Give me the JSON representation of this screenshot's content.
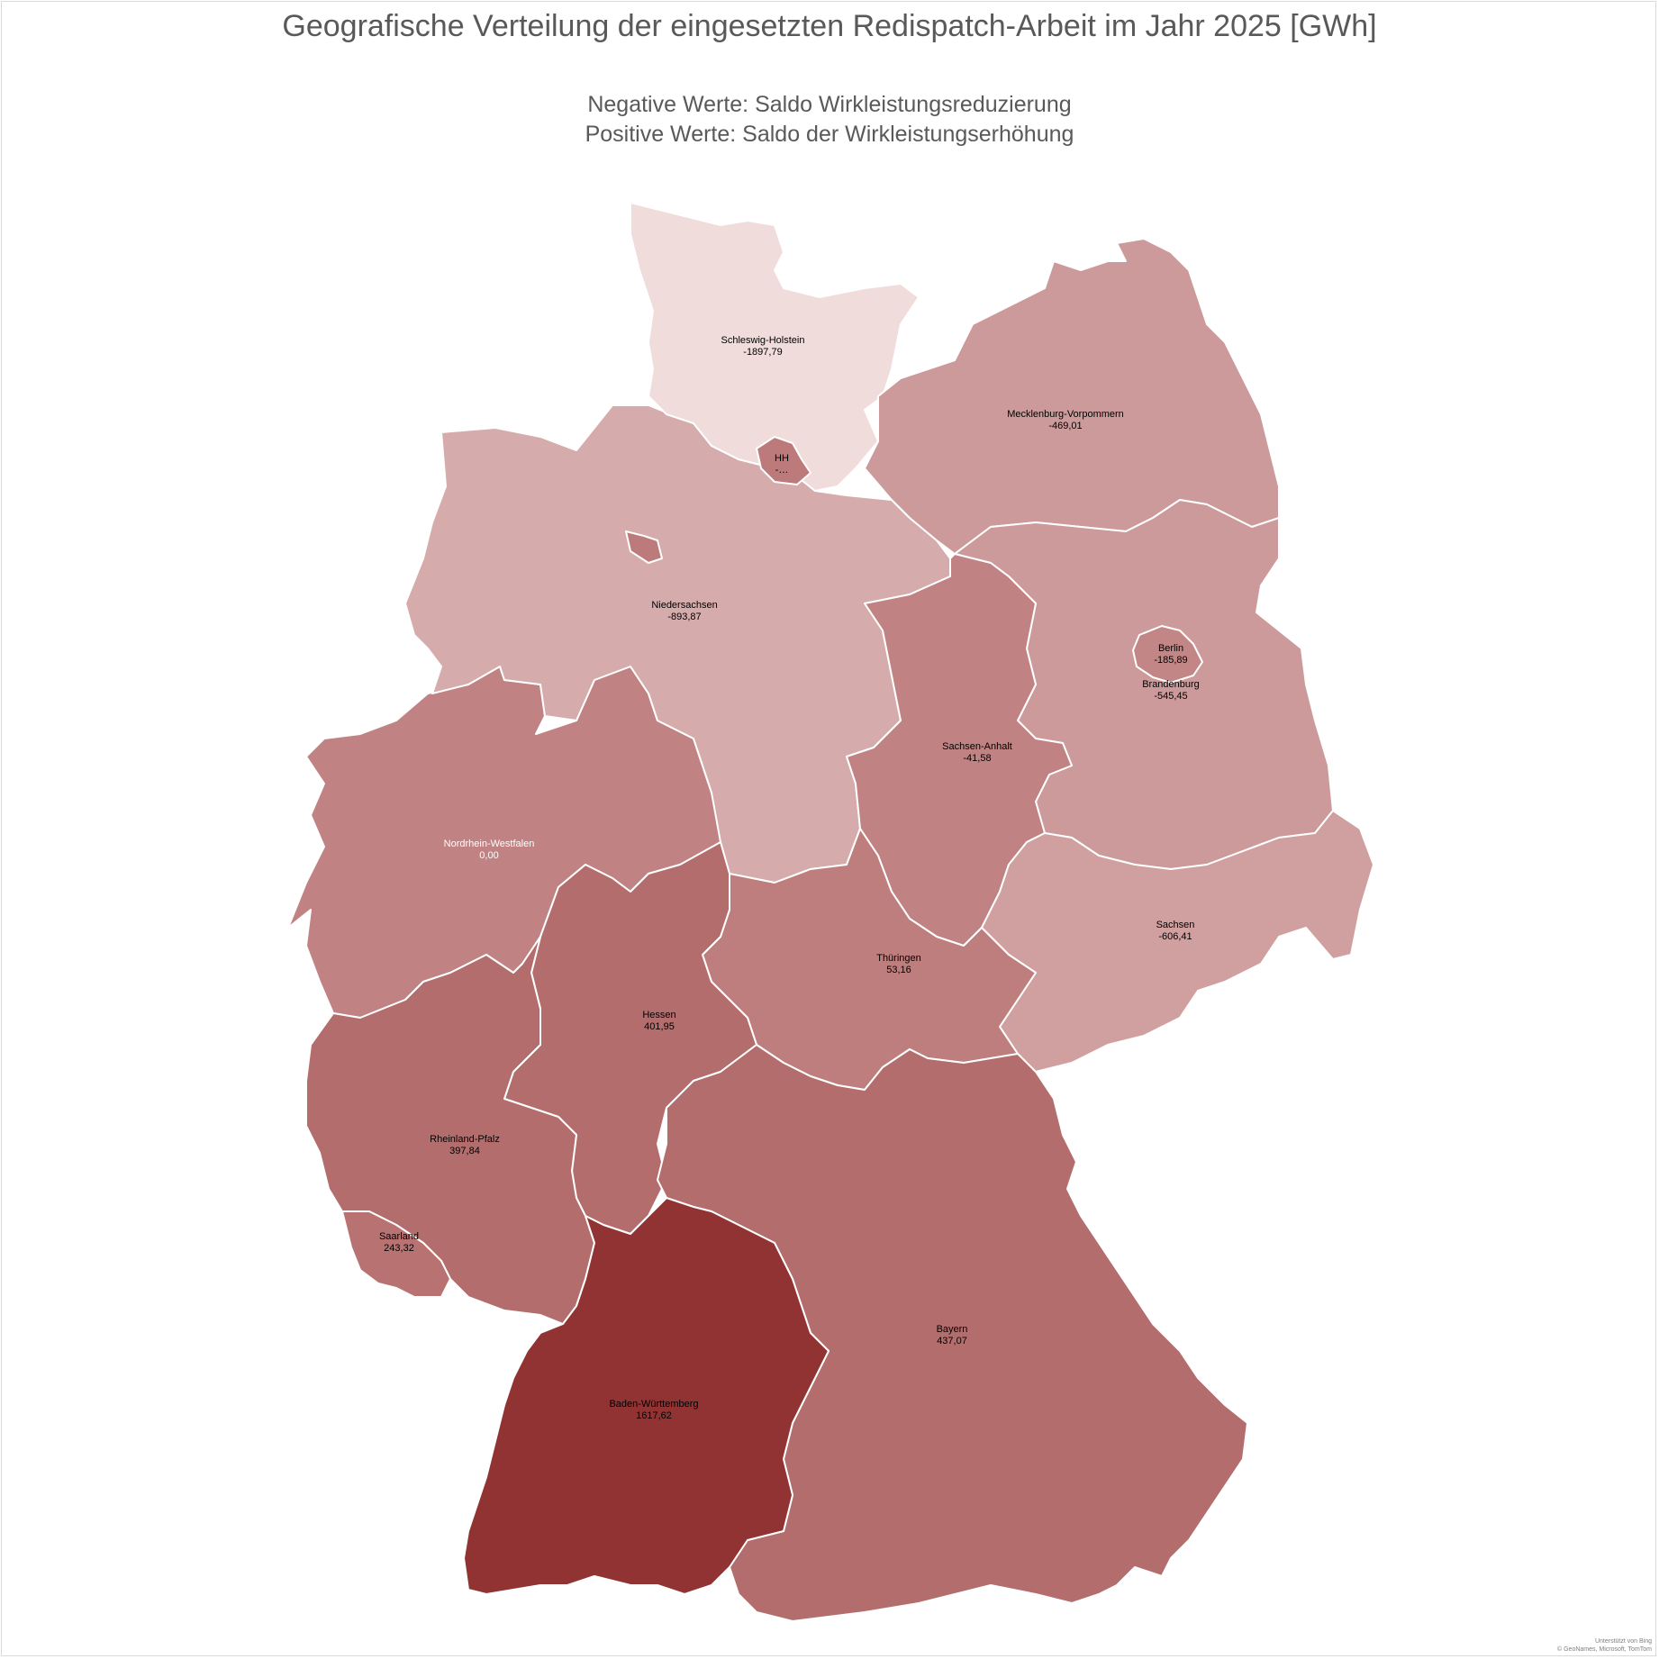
{
  "title": "Geografische Verteilung der eingesetzten Redispatch-Arbeit im Jahr 2025 [GWh]",
  "subtitle_line1": "Negative Werte: Saldo Wirkleistungsreduzierung",
  "subtitle_line2": "Positive Werte: Saldo der Wirkleistungserhöhung",
  "attribution_line1": "Unterstützt von Bing",
  "attribution_line2": "© GeoNames, Microsoft, TomTom",
  "map_data": {
    "type": "choropleth",
    "regions": [
      {
        "id": "sh",
        "name": "Schleswig-Holstein",
        "value": "-1897,79",
        "fill": "#f1dcdc"
      },
      {
        "id": "hh",
        "name": "HH",
        "value": "-…",
        "fill": "#bd7a7a"
      },
      {
        "id": "mv",
        "name": "Mecklenburg-Vorpommern",
        "value": "-469,01",
        "fill": "#cc9a9a"
      },
      {
        "id": "ni",
        "name": "Niedersachsen",
        "value": "-893,87",
        "fill": "#d5abab"
      },
      {
        "id": "hb",
        "name": "",
        "value": "",
        "fill": "#bd7a7a"
      },
      {
        "id": "be",
        "name": "Berlin",
        "value": "-185,89",
        "fill": "#c28686"
      },
      {
        "id": "bb",
        "name": "Brandenburg",
        "value": "-545,45",
        "fill": "#cc9a9a"
      },
      {
        "id": "st",
        "name": "Sachsen-Anhalt",
        "value": "-41,58",
        "fill": "#c08282"
      },
      {
        "id": "nw",
        "name": "Nordrhein-Westfalen",
        "value": "0,00",
        "fill": "#c08282"
      },
      {
        "id": "sn",
        "name": "Sachsen",
        "value": "-606,41",
        "fill": "#d09f9f"
      },
      {
        "id": "th",
        "name": "Thüringen",
        "value": "53,16",
        "fill": "#be7e7e"
      },
      {
        "id": "he",
        "name": "Hessen",
        "value": "401,95",
        "fill": "#b46d6d"
      },
      {
        "id": "rp",
        "name": "Rheinland-Pfalz",
        "value": "397,84",
        "fill": "#b46d6d"
      },
      {
        "id": "sl",
        "name": "Saarland",
        "value": "243,32",
        "fill": "#b87272"
      },
      {
        "id": "by",
        "name": "Bayern",
        "value": "437,07",
        "fill": "#b46d6d"
      },
      {
        "id": "bw",
        "name": "Baden-Württemberg",
        "value": "1617,62",
        "fill": "#923333"
      }
    ]
  }
}
